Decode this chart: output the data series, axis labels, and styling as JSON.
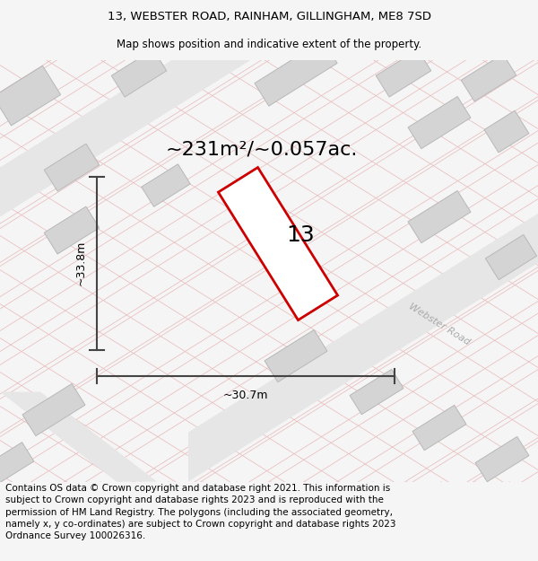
{
  "title_line1": "13, WEBSTER ROAD, RAINHAM, GILLINGHAM, ME8 7SD",
  "title_line2": "Map shows position and indicative extent of the property.",
  "footer_text": "Contains OS data © Crown copyright and database right 2021. This information is subject to Crown copyright and database rights 2023 and is reproduced with the permission of HM Land Registry. The polygons (including the associated geometry, namely x, y co-ordinates) are subject to Crown copyright and database rights 2023 Ordnance Survey 100026316.",
  "area_text": "~231m²/~0.057ac.",
  "property_number": "13",
  "dim_width": "~30.7m",
  "dim_height": "~33.8m",
  "bg_color": "#f5f5f5",
  "map_bg": "#ffffff",
  "plot_line_color": "#e8b8b8",
  "building_color": "#d4d4d4",
  "building_outline": "#b8b8b8",
  "road_band_color": "#e8e8e8",
  "road_label_color": "#aaaaaa",
  "property_outline_color": "#cc0000",
  "dim_line_color": "#444444",
  "title_fontsize": 9.5,
  "subtitle_fontsize": 8.5,
  "footer_fontsize": 7.5,
  "area_fontsize": 16,
  "prop_num_fontsize": 18,
  "dim_label_fontsize": 9,
  "road_label_fontsize": 8
}
